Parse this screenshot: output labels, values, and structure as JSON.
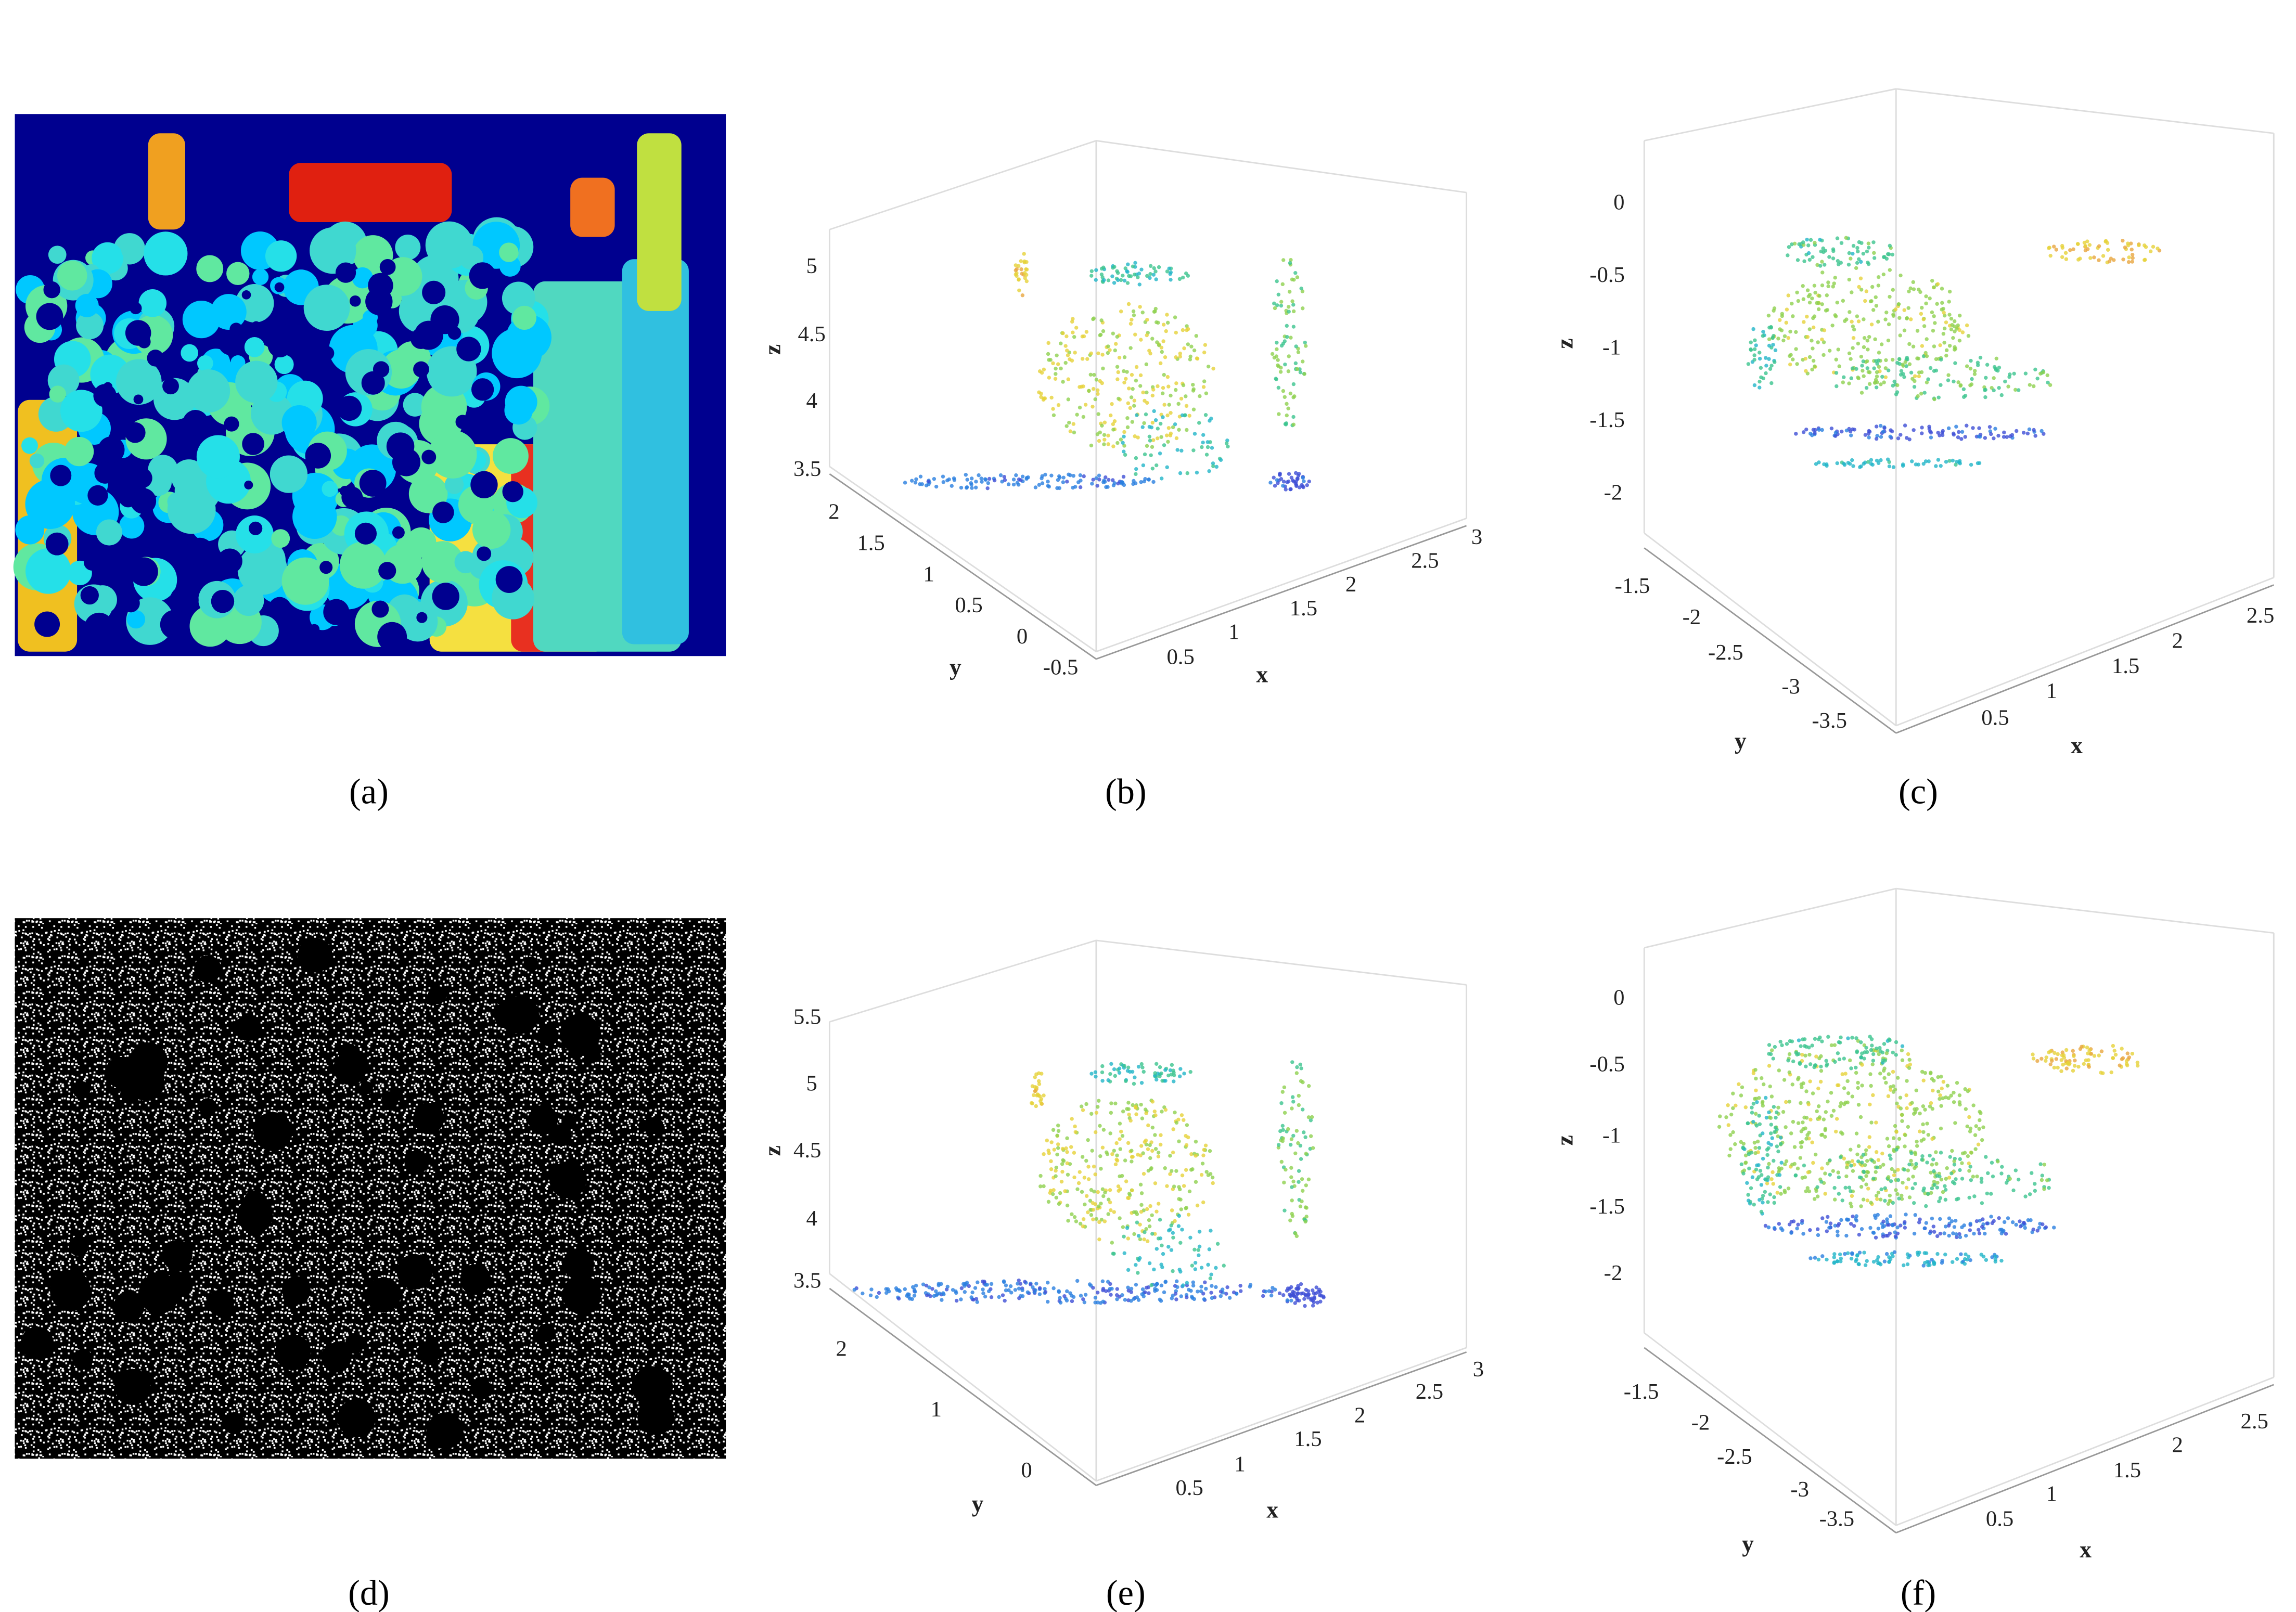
{
  "panels": [
    {
      "caption": "(a)"
    },
    {
      "caption": "(b)",
      "axes": {
        "z": {
          "title": "z",
          "ticks": [
            "5",
            "4.5",
            "4",
            "3.5"
          ]
        },
        "y": {
          "title": "y",
          "ticks": [
            "2",
            "1.5",
            "1",
            "0.5",
            "0",
            "-0.5"
          ]
        },
        "x": {
          "title": "x",
          "ticks": [
            "0.5",
            "1",
            "1.5",
            "2",
            "2.5",
            "3"
          ]
        }
      }
    },
    {
      "caption": "(c)",
      "axes": {
        "z": {
          "title": "z",
          "ticks": [
            "0",
            "-0.5",
            "-1",
            "-1.5",
            "-2"
          ]
        },
        "y": {
          "title": "y",
          "ticks": [
            "-1.5",
            "-2",
            "-2.5",
            "-3",
            "-3.5"
          ]
        },
        "x": {
          "title": "x",
          "ticks": [
            "0.5",
            "1",
            "1.5",
            "2",
            "2.5"
          ]
        }
      }
    },
    {
      "caption": "(d)"
    },
    {
      "caption": "(e)",
      "axes": {
        "z": {
          "title": "z",
          "ticks": [
            "5.5",
            "5",
            "4.5",
            "4",
            "3.5"
          ]
        },
        "y": {
          "title": "y",
          "ticks": [
            "2",
            "1",
            "0"
          ]
        },
        "x": {
          "title": "x",
          "ticks": [
            "0.5",
            "1",
            "1.5",
            "2",
            "2.5",
            "3"
          ]
        }
      }
    },
    {
      "caption": "(f)",
      "axes": {
        "z": {
          "title": "z",
          "ticks": [
            "0",
            "-0.5",
            "-1",
            "-1.5",
            "-2"
          ]
        },
        "y": {
          "title": "y",
          "ticks": [
            "-1.5",
            "-2",
            "-2.5",
            "-3",
            "-3.5"
          ]
        },
        "x": {
          "title": "x",
          "ticks": [
            "0.5",
            "1",
            "1.5",
            "2",
            "2.5"
          ]
        }
      }
    }
  ]
}
